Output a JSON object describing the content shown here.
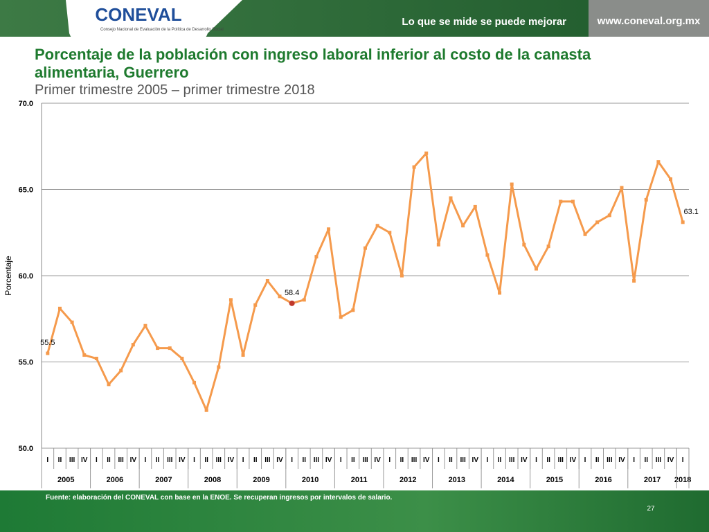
{
  "header": {
    "logo": "CONEVAL",
    "logo_subtitle": "Consejo Nacional de Evaluación de la Política de Desarrollo Social",
    "slogan": "Lo que se mide se puede mejorar",
    "url": "www.coneval.org.mx"
  },
  "chart_data": {
    "type": "line",
    "title": "Porcentaje de la población con ingreso laboral inferior al costo de la canasta alimentaria, Guerrero",
    "subtitle": "Primer trimestre 2005 – primer trimestre 2018",
    "y_label": "Porcentaje",
    "categories": [
      "I",
      "II",
      "III",
      "IV",
      "I",
      "II",
      "III",
      "IV",
      "I",
      "II",
      "III",
      "IV",
      "I",
      "II",
      "III",
      "IV",
      "I",
      "II",
      "III",
      "IV",
      "I",
      "II",
      "III",
      "IV",
      "I",
      "II",
      "III",
      "IV",
      "I",
      "II",
      "III",
      "IV",
      "I",
      "II",
      "III",
      "IV",
      "I",
      "II",
      "III",
      "IV",
      "I",
      "II",
      "III",
      "IV",
      "I",
      "II",
      "III",
      "IV",
      "I",
      "II",
      "III",
      "IV",
      "I"
    ],
    "year_groups": [
      {
        "label": "2005",
        "count": 4
      },
      {
        "label": "2006",
        "count": 4
      },
      {
        "label": "2007",
        "count": 4
      },
      {
        "label": "2008",
        "count": 4
      },
      {
        "label": "2009",
        "count": 4
      },
      {
        "label": "2010",
        "count": 4
      },
      {
        "label": "2011",
        "count": 4
      },
      {
        "label": "2012",
        "count": 4
      },
      {
        "label": "2013",
        "count": 4
      },
      {
        "label": "2014",
        "count": 4
      },
      {
        "label": "2015",
        "count": 4
      },
      {
        "label": "2016",
        "count": 4
      },
      {
        "label": "2017",
        "count": 4
      },
      {
        "label": "2018",
        "count": 1
      }
    ],
    "series": [
      {
        "name": "Guerrero",
        "color": "#f59a4c",
        "highlight_color": "#c0392b",
        "highlight_index": 20,
        "values": [
          55.5,
          58.1,
          57.3,
          55.4,
          55.2,
          53.7,
          54.5,
          56.0,
          57.1,
          55.8,
          55.8,
          55.2,
          53.8,
          52.2,
          54.7,
          58.6,
          55.4,
          58.3,
          59.7,
          58.8,
          58.4,
          58.6,
          61.1,
          62.7,
          57.6,
          58.0,
          61.6,
          62.9,
          62.5,
          60.0,
          66.3,
          67.1,
          61.8,
          64.5,
          62.9,
          64.0,
          61.2,
          59.0,
          65.3,
          61.8,
          60.4,
          61.7,
          64.3,
          64.3,
          62.4,
          63.1,
          63.5,
          65.1,
          59.7,
          64.4,
          66.6,
          65.6,
          63.1
        ],
        "value_labels": [
          "55.5",
          null,
          null,
          null,
          null,
          null,
          null,
          null,
          null,
          null,
          null,
          null,
          null,
          null,
          null,
          null,
          null,
          null,
          null,
          null,
          "58.4",
          null,
          null,
          null,
          null,
          null,
          null,
          null,
          null,
          null,
          null,
          null,
          null,
          null,
          null,
          null,
          null,
          null,
          null,
          null,
          null,
          null,
          null,
          null,
          null,
          null,
          null,
          null,
          null,
          null,
          null,
          null,
          "63.1"
        ]
      }
    ],
    "ylim": [
      50,
      70
    ],
    "yticks": [
      {
        "value": 50,
        "label": "50.0"
      },
      {
        "value": 55,
        "label": "55.0"
      },
      {
        "value": 60,
        "label": "60.0"
      },
      {
        "value": 65,
        "label": "65.0"
      },
      {
        "value": 70,
        "label": "70.0"
      }
    ],
    "grid": true
  },
  "footer": {
    "source": "Fuente: elaboración del CONEVAL con base en la ENOE. Se recuperan ingresos por intervalos de salario.",
    "page": "27"
  }
}
